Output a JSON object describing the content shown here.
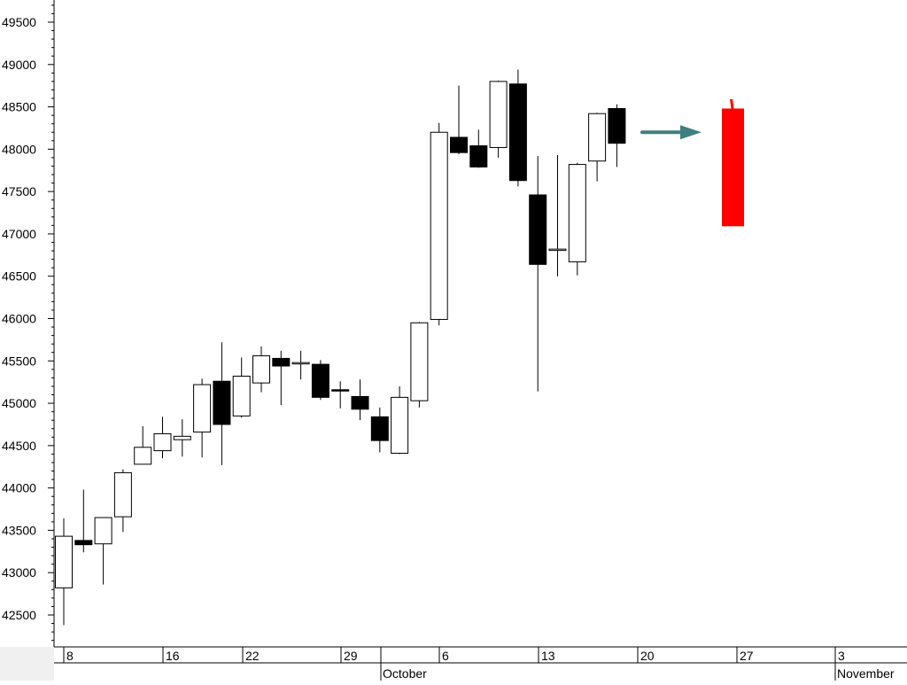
{
  "chart_data": {
    "type": "candlestick",
    "title": "",
    "xlabel": "",
    "ylabel": "",
    "ylim": [
      42150,
      49800
    ],
    "grid": false,
    "y_ticks": [
      42500,
      43000,
      43500,
      44000,
      44500,
      45000,
      45500,
      46000,
      46500,
      47000,
      47500,
      48000,
      48500,
      49000,
      49500
    ],
    "y_tick_labels": [
      "42500",
      "43000",
      "43500",
      "44000",
      "44500",
      "45000",
      "45500",
      "46000",
      "46500",
      "47000",
      "47500",
      "48000",
      "48500",
      "49000",
      "49500"
    ],
    "x_day_labels": [
      "8",
      "16",
      "22",
      "29",
      "6",
      "13",
      "20",
      "27",
      "3"
    ],
    "x_month_labels": [
      "October",
      "November"
    ],
    "candles": [
      {
        "date": "Sep 8",
        "open": 42820,
        "high": 43640,
        "low": 42380,
        "close": 43430
      },
      {
        "date": "Sep 9",
        "open": 43380,
        "high": 43980,
        "low": 43240,
        "close": 43330
      },
      {
        "date": "Sep 10",
        "open": 43340,
        "high": 43650,
        "low": 42860,
        "close": 43650
      },
      {
        "date": "Sep 11",
        "open": 43660,
        "high": 44220,
        "low": 43480,
        "close": 44180
      },
      {
        "date": "Sep 12",
        "open": 44280,
        "high": 44730,
        "low": 44280,
        "close": 44480
      },
      {
        "date": "Sep 15",
        "open": 44440,
        "high": 44840,
        "low": 44350,
        "close": 44640
      },
      {
        "date": "Sep 16",
        "open": 44570,
        "high": 44810,
        "low": 44370,
        "close": 44610
      },
      {
        "date": "Sep 17",
        "open": 44660,
        "high": 45290,
        "low": 44360,
        "close": 45220
      },
      {
        "date": "Sep 18",
        "open": 45260,
        "high": 45720,
        "low": 44270,
        "close": 44750
      },
      {
        "date": "Sep 19",
        "open": 44850,
        "high": 45540,
        "low": 44830,
        "close": 45320
      },
      {
        "date": "Sep 22",
        "open": 45240,
        "high": 45670,
        "low": 45130,
        "close": 45560
      },
      {
        "date": "Sep 23",
        "open": 45530,
        "high": 45620,
        "low": 44980,
        "close": 45440
      },
      {
        "date": "Sep 24",
        "open": 45470,
        "high": 45620,
        "low": 45280,
        "close": 45480
      },
      {
        "date": "Sep 25",
        "open": 45460,
        "high": 45510,
        "low": 45040,
        "close": 45070
      },
      {
        "date": "Sep 26",
        "open": 45160,
        "high": 45260,
        "low": 44940,
        "close": 45150
      },
      {
        "date": "Sep 29",
        "open": 45080,
        "high": 45280,
        "low": 44800,
        "close": 44930
      },
      {
        "date": "Sep 30",
        "open": 44840,
        "high": 44950,
        "low": 44420,
        "close": 44560
      },
      {
        "date": "Oct 1",
        "open": 44410,
        "high": 45200,
        "low": 44400,
        "close": 45070
      },
      {
        "date": "Oct 2",
        "open": 45030,
        "high": 45960,
        "low": 44950,
        "close": 45950
      },
      {
        "date": "Oct 3",
        "open": 45990,
        "high": 48310,
        "low": 45920,
        "close": 48200
      },
      {
        "date": "Oct 6",
        "open": 48140,
        "high": 48750,
        "low": 47940,
        "close": 47960
      },
      {
        "date": "Oct 7",
        "open": 48040,
        "high": 48230,
        "low": 47780,
        "close": 47790
      },
      {
        "date": "Oct 8",
        "open": 48020,
        "high": 48810,
        "low": 47900,
        "close": 48800
      },
      {
        "date": "Oct 9",
        "open": 48770,
        "high": 48940,
        "low": 47560,
        "close": 47630
      },
      {
        "date": "Oct 10",
        "open": 47460,
        "high": 47920,
        "low": 45140,
        "close": 46640
      },
      {
        "date": "Oct 13",
        "open": 46810,
        "high": 47930,
        "low": 46500,
        "close": 46820
      },
      {
        "date": "Oct 14",
        "open": 46670,
        "high": 47840,
        "low": 46510,
        "close": 47820
      },
      {
        "date": "Oct 15",
        "open": 47860,
        "high": 48430,
        "low": 47620,
        "close": 48420
      },
      {
        "date": "Oct 16",
        "open": 48480,
        "high": 48530,
        "low": 47790,
        "close": 48070
      }
    ],
    "projected_candle": {
      "date": "Oct 24",
      "open": 48480,
      "high": 48590,
      "low": 47090,
      "close": 47090
    },
    "annotations": [
      {
        "type": "arrow",
        "from_date": "Oct 18",
        "to_date": "Oct 21",
        "value": 48200
      }
    ],
    "colors": {
      "up_body": "#ffffff",
      "down_body": "#000000",
      "outline": "#000000",
      "projected": "#ff0000",
      "arrow": "#3f7f80",
      "axis_bg": "#f0f0f0"
    }
  }
}
